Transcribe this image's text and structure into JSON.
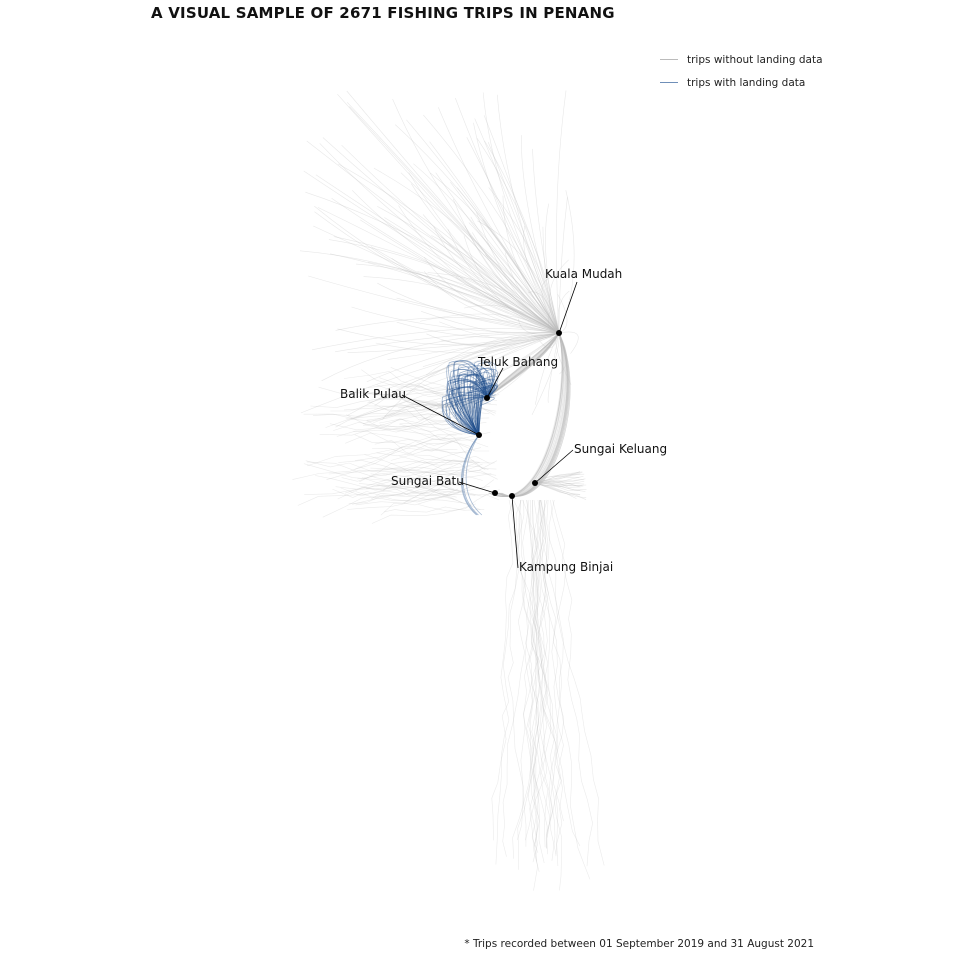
{
  "title": "A VISUAL SAMPLE OF 2671 FISHING TRIPS IN PENANG",
  "legend": {
    "items": [
      {
        "label": "trips without landing data",
        "color": "#bdbdbd"
      },
      {
        "label": "trips with landing data",
        "color": "#6f8fb8"
      }
    ]
  },
  "colors": {
    "trip_gray": "#bdbdbd",
    "trip_blue": "#1f4e8c",
    "point": "#000000"
  },
  "places": [
    {
      "name": "Kuala Mudah"
    },
    {
      "name": "Teluk Bahang"
    },
    {
      "name": "Balik Pulau"
    },
    {
      "name": "Sungai Keluang"
    },
    {
      "name": "Sungai Batu"
    },
    {
      "name": "Kampung Binjai"
    }
  ],
  "caption": "* Trips recorded between 01 September 2019 and 31 August 2021"
}
